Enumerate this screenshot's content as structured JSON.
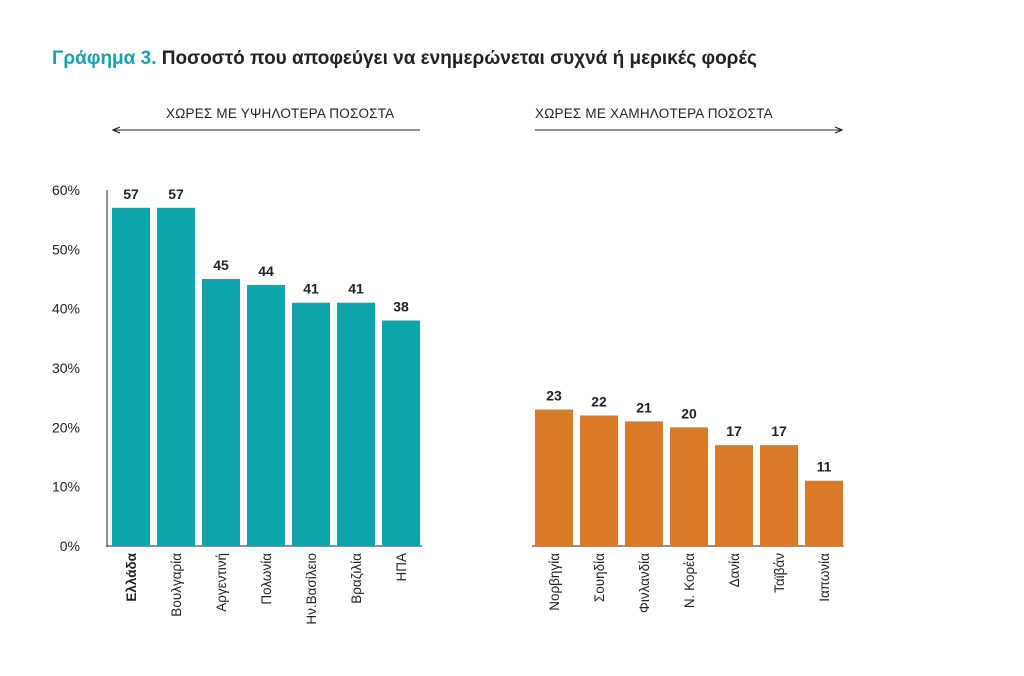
{
  "title": {
    "prefix": "Γράφημα 3.",
    "text": "Ποσοστό που αποφεύγει να ενημερώνεται συχνά ή μερικές φορές"
  },
  "groups": {
    "left": "ΧΩΡΕΣ ΜΕ ΥΨΗΛΟΤΕΡΑ ΠΟΣΟΣΤΑ",
    "right": "ΧΩΡΕΣ ΜΕ ΧΑΜΗΛΟΤΕΡΑ ΠΟΣΟΣΤΑ"
  },
  "chart_data": {
    "type": "bar",
    "title": "Ποσοστό που αποφεύγει να ενημερώνεται συχνά ή μερικές φορές",
    "xlabel": "",
    "ylabel": "",
    "ylim": [
      0,
      60
    ],
    "yticks": [
      "0%",
      "10%",
      "20%",
      "30%",
      "40%",
      "50%",
      "60%"
    ],
    "grid": false,
    "legend": "none",
    "colors": {
      "higher": "#0fa3ac",
      "lower": "#d97a27"
    },
    "series": [
      {
        "group": "higher",
        "categories": [
          "Ελλάδα",
          "Βουλγαρία",
          "Αργεντινή",
          "Πολωνία",
          "Ην.Βασίλειο",
          "Βραζιλία",
          "ΗΠΑ"
        ],
        "values": [
          57,
          57,
          45,
          44,
          41,
          41,
          38
        ]
      },
      {
        "group": "lower",
        "categories": [
          "Νορβηγία",
          "Σουηδία",
          "Φινλανδία",
          "Ν. Κορέα",
          "Δανία",
          "Ταϊβάν",
          "Ιαπωνία"
        ],
        "values": [
          23,
          22,
          21,
          20,
          17,
          17,
          11
        ]
      }
    ],
    "highlighted_category": "Ελλάδα"
  }
}
